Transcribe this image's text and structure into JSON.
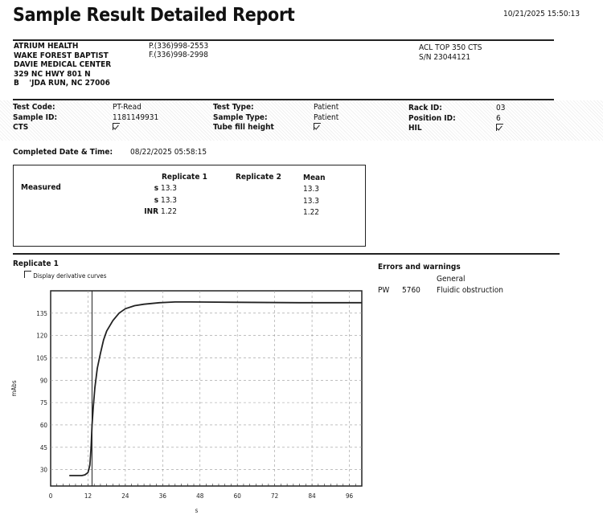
{
  "header": {
    "title": "Sample Result Detailed Report",
    "printed": "10/21/2025 15:50:13"
  },
  "facility": {
    "lines": [
      "ATRIUM HEALTH",
      "WAKE FOREST BAPTIST",
      "DAVIE MEDICAL CENTER",
      "329 NC HWY 801 N",
      "B    'JDA RUN, NC 27006"
    ],
    "phone": "P.(336)998-2553",
    "fax": "F.(336)998-2998",
    "instrument": "ACL TOP 350 CTS",
    "serial": "S/N 23044121"
  },
  "sample": {
    "test_code_label": "Test Code:",
    "test_code": "PT-Read",
    "sample_id_label": "Sample ID:",
    "sample_id": "1181149931",
    "cts_label": "CTS",
    "cts_checked": true,
    "test_type_label": "Test Type:",
    "test_type": "Patient",
    "sample_type_label": "Sample Type:",
    "sample_type": "Patient",
    "tube_fill_label": "Tube fill height",
    "tube_fill_checked": true,
    "rack_id_label": "Rack ID:",
    "rack_id": "03",
    "position_id_label": "Position ID:",
    "position_id": "6",
    "hil_label": "HIL",
    "hil_checked": true,
    "completed_label": "Completed Date & Time:",
    "completed": "08/22/2025 05:58:15"
  },
  "results": {
    "row_label": "Measured",
    "headers": [
      "Replicate 1",
      "Replicate 2",
      "Mean"
    ],
    "rows": [
      {
        "unit": "s",
        "rep1": "13.3",
        "rep2": "",
        "mean": "13.3"
      },
      {
        "unit": "s",
        "rep1": "13.3",
        "rep2": "",
        "mean": "13.3"
      },
      {
        "unit": "INR",
        "rep1": "1.22",
        "rep2": "",
        "mean": "1.22"
      }
    ]
  },
  "replicate": {
    "title": "Replicate 1",
    "derivative_label": "Display derivative curves",
    "derivative_checked": false
  },
  "errors": {
    "title": "Errors and warnings",
    "group": "General",
    "items": [
      {
        "code": "PW",
        "number": "5760",
        "message": "Fluidic obstruction"
      }
    ]
  },
  "chart_data": {
    "type": "line",
    "xlabel": "s",
    "ylabel": "mAbs",
    "xlim": [
      0,
      100
    ],
    "ylim": [
      19,
      150
    ],
    "xticks": [
      0,
      12,
      24,
      36,
      48,
      60,
      72,
      84,
      96
    ],
    "yticks": [
      30,
      45,
      60,
      75,
      90,
      105,
      120,
      135
    ],
    "grid": true,
    "marker_x": 13.3,
    "x": [
      6,
      8,
      10,
      11,
      12,
      12.6,
      13,
      13.3,
      13.7,
      14.2,
      15,
      16,
      17,
      18,
      20,
      22,
      24,
      27,
      30,
      35,
      40,
      45,
      60,
      80,
      100
    ],
    "y": [
      26,
      26,
      26,
      26.5,
      28,
      33,
      45,
      60,
      72,
      85,
      98,
      108,
      117,
      123,
      130,
      135,
      138,
      140,
      141,
      142,
      142.5,
      142.5,
      142.3,
      142,
      142
    ],
    "color": "#222222"
  }
}
